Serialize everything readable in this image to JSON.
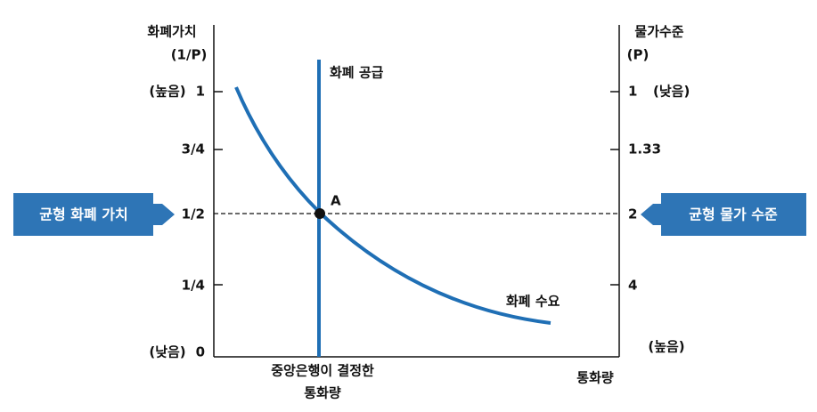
{
  "left_axis": {
    "title": "화폐가치",
    "unit": "(1/P)",
    "ticks": [
      {
        "note": "(높음)",
        "label": "1"
      },
      {
        "label": "3/4"
      },
      {
        "label": "1/2"
      },
      {
        "label": "1/4"
      },
      {
        "note": "(낮음)",
        "label": "0"
      }
    ]
  },
  "right_axis": {
    "title": "물가수준",
    "unit": "(P)",
    "ticks": [
      {
        "label": "1",
        "note": "(낮음)"
      },
      {
        "label": "1.33"
      },
      {
        "label": "2"
      },
      {
        "label": "4"
      }
    ],
    "bottom_note": "(높음)"
  },
  "x_axis": {
    "title": "통화량"
  },
  "supply": {
    "label": "화폐 공급",
    "caption": [
      "중앙은행이 결정한",
      "통화량"
    ]
  },
  "demand": {
    "label": "화폐 수요"
  },
  "equilibrium": {
    "label": "A"
  },
  "callouts": {
    "left": "균형 화폐 가치",
    "right": "균형 물가 수준"
  }
}
